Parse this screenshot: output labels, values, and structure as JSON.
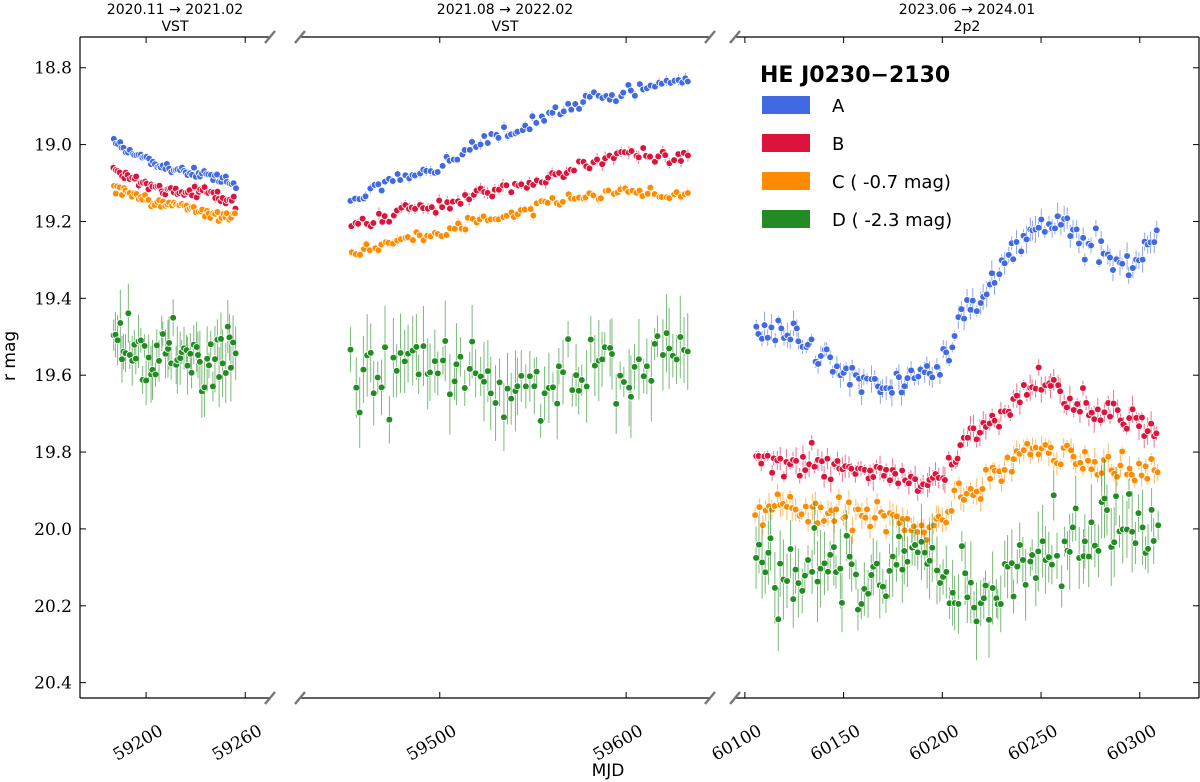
{
  "chart_data": {
    "type": "scatter",
    "title": "HE J0230−2130",
    "xlabel": "MJD",
    "ylabel": "r mag",
    "ylim": [
      20.44,
      18.72
    ],
    "yticks": [
      "18.8",
      "19.0",
      "19.2",
      "19.4",
      "19.6",
      "19.8",
      "20.0",
      "20.2",
      "20.4"
    ],
    "yticks_values": [
      18.8,
      19.0,
      19.2,
      19.4,
      19.6,
      19.8,
      20.0,
      20.2,
      20.4
    ],
    "legend_position": "top-right",
    "panels": [
      {
        "title": "2020.11 → 2021.02",
        "subtitle": "VST",
        "xlim": [
          59160,
          59275
        ],
        "xticks": [
          "59200",
          "59260"
        ],
        "xticks_values": [
          59200,
          59260
        ]
      },
      {
        "title": "2021.08 → 2022.02",
        "subtitle": "VST",
        "xlim": [
          59425,
          59645
        ],
        "xticks": [
          "59500",
          "59600"
        ],
        "xticks_values": [
          59500,
          59600
        ]
      },
      {
        "title": "2023.06 → 2024.01",
        "subtitle": "2p2",
        "xlim": [
          60095,
          60330
        ],
        "xticks": [
          "60100",
          "60150",
          "60200",
          "60250",
          "60300"
        ],
        "xticks_values": [
          60100,
          60150,
          60200,
          60250,
          60300
        ]
      }
    ],
    "series": [
      {
        "name": "A",
        "legend": "A",
        "color": "#4169e1",
        "segments": [
          [
            [
              59180,
              18.99
            ],
            [
              59190,
              19.02
            ],
            [
              59205,
              19.05
            ],
            [
              59220,
              19.07
            ],
            [
              59240,
              19.08
            ],
            [
              59255,
              19.11
            ]
          ],
          [
            [
              59452,
              19.15
            ],
            [
              59470,
              19.1
            ],
            [
              59480,
              19.08
            ],
            [
              59500,
              19.06
            ],
            [
              59520,
              19.0
            ],
            [
              59540,
              18.96
            ],
            [
              59560,
              18.92
            ],
            [
              59580,
              18.88
            ],
            [
              59600,
              18.86
            ],
            [
              59615,
              18.84
            ],
            [
              59635,
              18.83
            ]
          ],
          [
            [
              60105,
              19.5
            ],
            [
              60120,
              19.48
            ],
            [
              60135,
              19.53
            ],
            [
              60150,
              19.6
            ],
            [
              60165,
              19.63
            ],
            [
              60180,
              19.63
            ],
            [
              60190,
              19.6
            ],
            [
              60200,
              19.58
            ],
            [
              60210,
              19.45
            ],
            [
              60220,
              19.38
            ],
            [
              60230,
              19.32
            ],
            [
              60240,
              19.24
            ],
            [
              60250,
              19.22
            ],
            [
              60262,
              19.2
            ],
            [
              60270,
              19.25
            ],
            [
              60280,
              19.28
            ],
            [
              60290,
              19.33
            ],
            [
              60300,
              19.3
            ],
            [
              60310,
              19.22
            ]
          ]
        ]
      },
      {
        "name": "B",
        "legend": "B",
        "color": "#dc143c",
        "segments": [
          [
            [
              59180,
              19.06
            ],
            [
              59190,
              19.09
            ],
            [
              59205,
              19.11
            ],
            [
              59220,
              19.12
            ],
            [
              59240,
              19.13
            ],
            [
              59255,
              19.15
            ]
          ],
          [
            [
              59452,
              19.22
            ],
            [
              59470,
              19.19
            ],
            [
              59480,
              19.17
            ],
            [
              59500,
              19.16
            ],
            [
              59520,
              19.13
            ],
            [
              59540,
              19.11
            ],
            [
              59560,
              19.08
            ],
            [
              59580,
              19.05
            ],
            [
              59600,
              19.02
            ],
            [
              59615,
              19.03
            ],
            [
              59635,
              19.03
            ]
          ],
          [
            [
              60105,
              19.82
            ],
            [
              60120,
              19.84
            ],
            [
              60135,
              19.83
            ],
            [
              60150,
              19.83
            ],
            [
              60165,
              19.84
            ],
            [
              60180,
              19.86
            ],
            [
              60190,
              19.88
            ],
            [
              60200,
              19.87
            ],
            [
              60210,
              19.78
            ],
            [
              60220,
              19.74
            ],
            [
              60230,
              19.72
            ],
            [
              60240,
              19.66
            ],
            [
              60250,
              19.62
            ],
            [
              60262,
              19.66
            ],
            [
              60270,
              19.68
            ],
            [
              60280,
              19.7
            ],
            [
              60290,
              19.71
            ],
            [
              60300,
              19.73
            ],
            [
              60310,
              19.73
            ]
          ]
        ]
      },
      {
        "name": "C",
        "legend": "C ( -0.7 mag)",
        "color": "#ff8c00",
        "segments": [
          [
            [
              59180,
              19.11
            ],
            [
              59190,
              19.13
            ],
            [
              59205,
              19.15
            ],
            [
              59220,
              19.16
            ],
            [
              59240,
              19.18
            ],
            [
              59255,
              19.19
            ]
          ],
          [
            [
              59452,
              19.28
            ],
            [
              59470,
              19.26
            ],
            [
              59480,
              19.25
            ],
            [
              59500,
              19.23
            ],
            [
              59520,
              19.2
            ],
            [
              59540,
              19.18
            ],
            [
              59560,
              19.15
            ],
            [
              59580,
              19.13
            ],
            [
              59600,
              19.12
            ],
            [
              59615,
              19.13
            ],
            [
              59635,
              19.13
            ]
          ],
          [
            [
              60105,
              19.95
            ],
            [
              60120,
              19.94
            ],
            [
              60135,
              19.96
            ],
            [
              60150,
              19.96
            ],
            [
              60165,
              19.97
            ],
            [
              60180,
              19.99
            ],
            [
              60190,
              20.01
            ],
            [
              60200,
              19.96
            ],
            [
              60210,
              19.92
            ],
            [
              60220,
              19.88
            ],
            [
              60230,
              19.86
            ],
            [
              60240,
              19.8
            ],
            [
              60250,
              19.78
            ],
            [
              60262,
              19.82
            ],
            [
              60270,
              19.83
            ],
            [
              60280,
              19.83
            ],
            [
              60290,
              19.84
            ],
            [
              60300,
              19.84
            ],
            [
              60310,
              19.84
            ]
          ]
        ]
      },
      {
        "name": "D",
        "legend": "D ( -2.3 mag)",
        "color": "#228b22",
        "segments": [
          [
            [
              59180,
              19.53
            ],
            [
              59190,
              19.52
            ],
            [
              59205,
              19.54
            ],
            [
              59220,
              19.55
            ],
            [
              59240,
              19.57
            ],
            [
              59255,
              19.55
            ]
          ],
          [
            [
              59452,
              19.55
            ],
            [
              59470,
              19.6
            ],
            [
              59480,
              19.52
            ],
            [
              59500,
              19.58
            ],
            [
              59520,
              19.6
            ],
            [
              59540,
              19.62
            ],
            [
              59560,
              19.62
            ],
            [
              59580,
              19.6
            ],
            [
              59600,
              19.56
            ],
            [
              59615,
              19.55
            ],
            [
              59635,
              19.58
            ]
          ],
          [
            [
              60105,
              20.1
            ],
            [
              60120,
              20.12
            ],
            [
              60135,
              20.08
            ],
            [
              60150,
              20.1
            ],
            [
              60165,
              20.12
            ],
            [
              60180,
              20.05
            ],
            [
              60190,
              20.05
            ],
            [
              60200,
              20.1
            ],
            [
              60210,
              20.15
            ],
            [
              60220,
              20.2
            ],
            [
              60230,
              20.18
            ],
            [
              60240,
              20.12
            ],
            [
              60250,
              20.1
            ],
            [
              60262,
              20.06
            ],
            [
              60270,
              20.03
            ],
            [
              60280,
              20.0
            ],
            [
              60290,
              20.0
            ],
            [
              60300,
              20.02
            ],
            [
              60310,
              20.0
            ]
          ]
        ]
      }
    ]
  }
}
